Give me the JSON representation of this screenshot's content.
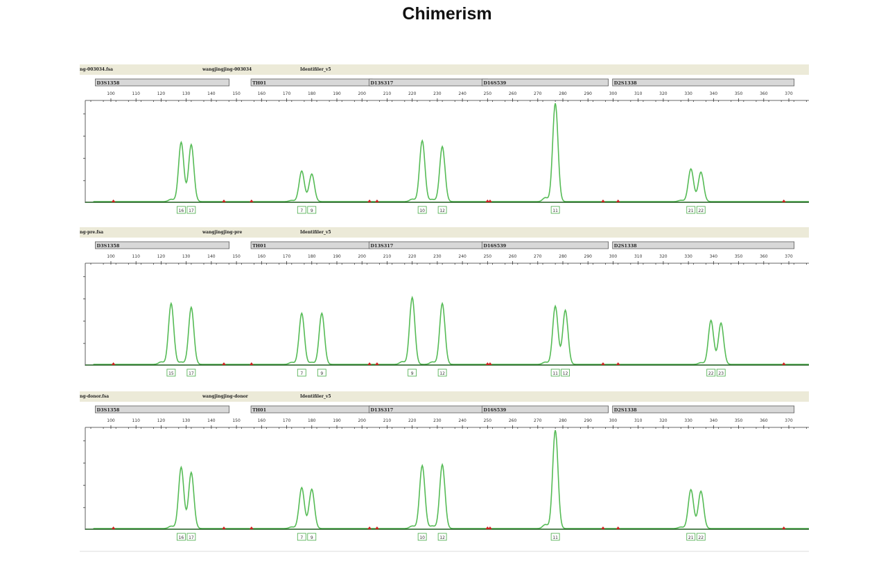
{
  "title": "Chimerism",
  "chart_data": {
    "type": "line",
    "x_range": [
      90,
      376
    ],
    "x_ticks": [
      100,
      110,
      120,
      130,
      140,
      150,
      160,
      170,
      180,
      190,
      200,
      210,
      220,
      230,
      240,
      250,
      260,
      270,
      280,
      290,
      300,
      310,
      320,
      330,
      340,
      350,
      360,
      370,
      380
    ],
    "loci": [
      {
        "name": "D3S1358",
        "range": [
          96,
          146
        ]
      },
      {
        "name": "TH01",
        "range": [
          158,
          203
        ]
      },
      {
        "name": "D13S317",
        "range": [
          205,
          249
        ]
      },
      {
        "name": "D16S539",
        "range": [
          250,
          297
        ]
      },
      {
        "name": "D2S1338",
        "range": [
          302,
          371
        ]
      }
    ],
    "markers": [
      101,
      145,
      156,
      203,
      206,
      250,
      251,
      296,
      302,
      368
    ],
    "panels": [
      {
        "file": "ng-003034.fsa",
        "sample": "wangjingjing-003034",
        "analysis": "Identifiler_v5",
        "peaks": [
          {
            "bp": 128,
            "h": 0.58
          },
          {
            "bp": 132,
            "h": 0.58
          },
          {
            "bp": 176,
            "h": 0.3
          },
          {
            "bp": 180,
            "h": 0.28
          },
          {
            "bp": 224,
            "h": 0.62
          },
          {
            "bp": 232,
            "h": 0.56
          },
          {
            "bp": 277,
            "h": 1.0
          },
          {
            "bp": 331,
            "h": 0.32
          },
          {
            "bp": 335,
            "h": 0.3
          }
        ],
        "alleles": [
          {
            "bp": 128,
            "label": "16"
          },
          {
            "bp": 132,
            "label": "17"
          },
          {
            "bp": 176,
            "label": "7"
          },
          {
            "bp": 180,
            "label": "9"
          },
          {
            "bp": 224,
            "label": "10"
          },
          {
            "bp": 232,
            "label": "12"
          },
          {
            "bp": 277,
            "label": "11"
          },
          {
            "bp": 331,
            "label": "21"
          },
          {
            "bp": 335,
            "label": "22"
          }
        ]
      },
      {
        "file": "ng-pre.fsa",
        "sample": "wangjingjing-pre",
        "analysis": "Identifiler_v5",
        "peaks": [
          {
            "bp": 124,
            "h": 0.62
          },
          {
            "bp": 132,
            "h": 0.58
          },
          {
            "bp": 176,
            "h": 0.52
          },
          {
            "bp": 184,
            "h": 0.52
          },
          {
            "bp": 220,
            "h": 0.68
          },
          {
            "bp": 232,
            "h": 0.62
          },
          {
            "bp": 277,
            "h": 0.57
          },
          {
            "bp": 281,
            "h": 0.55
          },
          {
            "bp": 339,
            "h": 0.43
          },
          {
            "bp": 343,
            "h": 0.42
          }
        ],
        "alleles": [
          {
            "bp": 124,
            "label": "15"
          },
          {
            "bp": 132,
            "label": "17"
          },
          {
            "bp": 176,
            "label": "7"
          },
          {
            "bp": 184,
            "label": "9"
          },
          {
            "bp": 220,
            "label": "9"
          },
          {
            "bp": 232,
            "label": "12"
          },
          {
            "bp": 277,
            "label": "11"
          },
          {
            "bp": 281,
            "label": "12"
          },
          {
            "bp": 339,
            "label": "22"
          },
          {
            "bp": 343,
            "label": "23"
          }
        ]
      },
      {
        "file": "ng-donor.fsa",
        "sample": "wangjingjing-donor",
        "analysis": "Identifiler_v5",
        "peaks": [
          {
            "bp": 128,
            "h": 0.6
          },
          {
            "bp": 132,
            "h": 0.57
          },
          {
            "bp": 176,
            "h": 0.4
          },
          {
            "bp": 180,
            "h": 0.4
          },
          {
            "bp": 224,
            "h": 0.64
          },
          {
            "bp": 232,
            "h": 0.65
          },
          {
            "bp": 277,
            "h": 1.0
          },
          {
            "bp": 331,
            "h": 0.38
          },
          {
            "bp": 335,
            "h": 0.38
          }
        ],
        "alleles": [
          {
            "bp": 128,
            "label": "16"
          },
          {
            "bp": 132,
            "label": "17"
          },
          {
            "bp": 176,
            "label": "7"
          },
          {
            "bp": 180,
            "label": "9"
          },
          {
            "bp": 224,
            "label": "10"
          },
          {
            "bp": 232,
            "label": "12"
          },
          {
            "bp": 277,
            "label": "11"
          },
          {
            "bp": 331,
            "label": "21"
          },
          {
            "bp": 335,
            "label": "22"
          }
        ]
      }
    ]
  }
}
